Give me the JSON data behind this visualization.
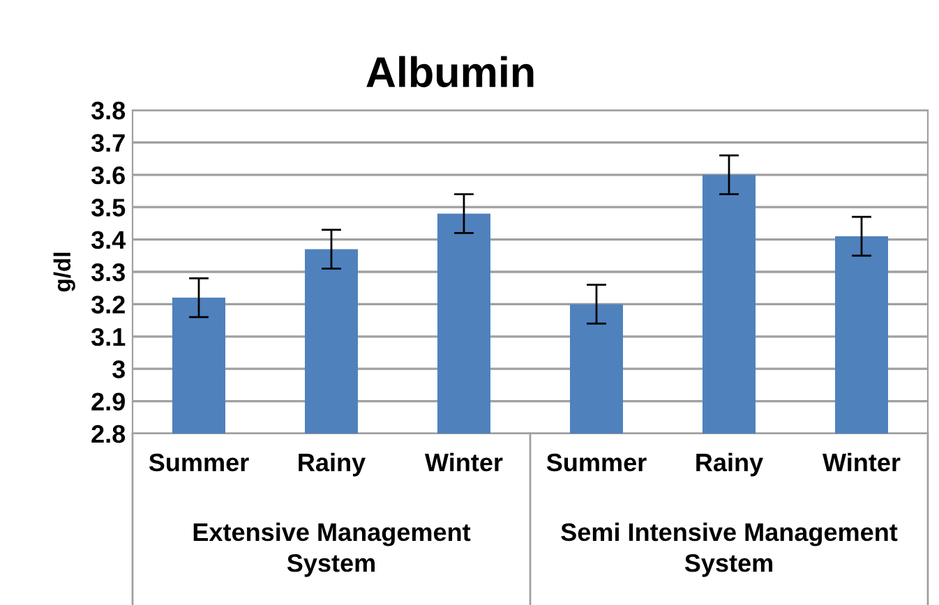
{
  "chart_data": {
    "type": "bar",
    "title": "Albumin",
    "ylabel": "g/dl",
    "categories": [
      "Summer",
      "Rainy",
      "Winter",
      "Summer",
      "Rainy",
      "Winter"
    ],
    "values": [
      3.22,
      3.37,
      3.48,
      3.2,
      3.6,
      3.41
    ],
    "errors": [
      0.06,
      0.06,
      0.06,
      0.06,
      0.06,
      0.06
    ],
    "color": "#4f81bd",
    "annotations": [
      "Extensive Management\nSystem",
      "Semi Intensive Management\nSystem"
    ],
    "ylim": [
      2.8,
      3.8
    ],
    "yticks": [
      2.8,
      2.9,
      3,
      3.1,
      3.2,
      3.3,
      3.4,
      3.5,
      3.6,
      3.7,
      3.8
    ],
    "grid": "y"
  }
}
